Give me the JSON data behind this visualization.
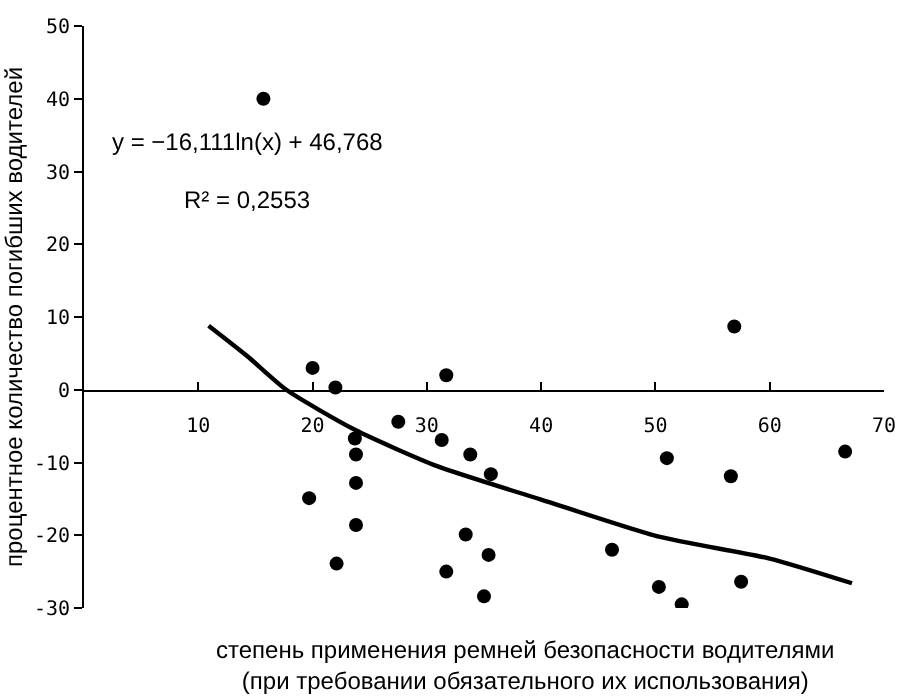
{
  "chart_data": {
    "type": "scatter",
    "xlabel": "степень применения ремней безопасности водителями\n(при требовании обязательного их использования)",
    "ylabel": "процентное количество погибших водителей",
    "annotations": [
      "y = −16,111ln(x) + 46,768",
      "R² = 0,2553"
    ],
    "xlim": [
      0,
      70
    ],
    "xticks": [
      10,
      20,
      30,
      40,
      50,
      60,
      70
    ],
    "ylim": [
      -30,
      50
    ],
    "yticks": [
      50,
      40,
      30,
      20,
      10,
      0,
      -10,
      -20,
      -30
    ],
    "grid": false,
    "legend": false,
    "marker": "circle",
    "series": [
      {
        "type": "scatter",
        "color": "#000000",
        "x": [
          15.7,
          20.0,
          22.0,
          31.7,
          56.9,
          27.5,
          23.7,
          31.3,
          23.8,
          33.8,
          51.0,
          66.6,
          35.6,
          56.6,
          23.8,
          19.7,
          23.8,
          33.4,
          46.2,
          35.4,
          22.1,
          31.7,
          57.5,
          50.3,
          35.0,
          52.3
        ],
        "values": [
          40.0,
          3.0,
          0.3,
          2.0,
          8.7,
          -4.4,
          -6.7,
          -6.9,
          -8.9,
          -8.9,
          -9.4,
          -8.5,
          -11.6,
          -11.9,
          -12.8,
          -14.9,
          -18.6,
          -19.9,
          -22.0,
          -22.7,
          -23.9,
          -25.0,
          -26.4,
          -27.1,
          -28.4,
          -29.5
        ]
      },
      {
        "type": "line",
        "color": "#000000",
        "marker": "none",
        "line_style": "solid",
        "x": [
          10.9,
          14.3,
          17.7,
          23.7,
          30.9,
          40.0,
          50.3,
          60.0,
          67.2
        ],
        "values": [
          8.8,
          4.6,
          0.0,
          -5.5,
          -10.5,
          -15.1,
          -20.2,
          -23.2,
          -26.6
        ]
      }
    ]
  }
}
